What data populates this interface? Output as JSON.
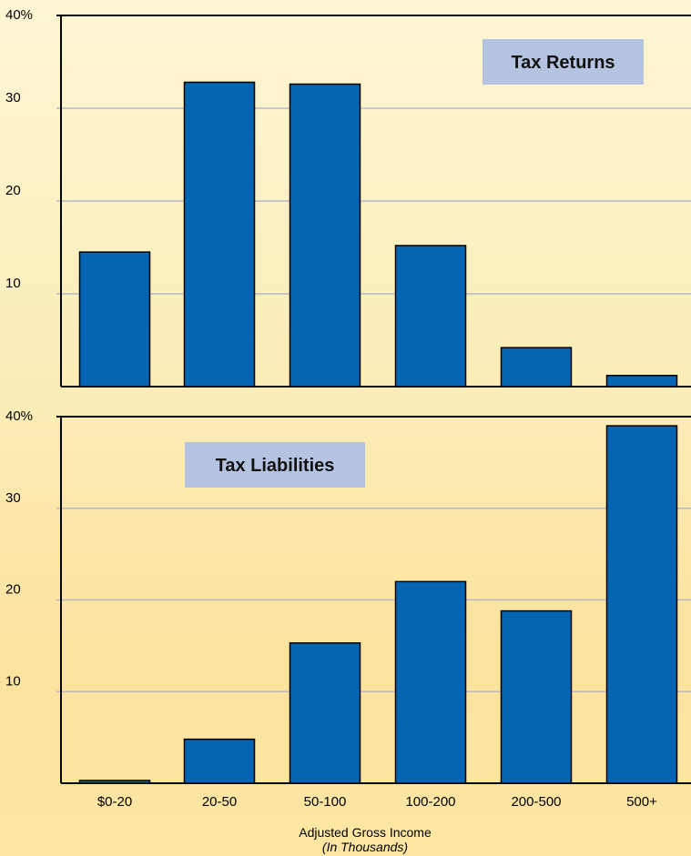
{
  "chart_data": [
    {
      "type": "bar",
      "title": "Tax Returns",
      "categories": [
        "$0-20",
        "20-50",
        "50-100",
        "100-200",
        "200-500",
        "500+"
      ],
      "values": [
        14.5,
        32.8,
        32.6,
        15.2,
        4.2,
        1.2
      ],
      "ylim": [
        0,
        40
      ],
      "yticks": [
        "10",
        "20",
        "30",
        "40%"
      ],
      "grid": true
    },
    {
      "type": "bar",
      "title": "Tax Liabilities",
      "categories": [
        "$0-20",
        "20-50",
        "50-100",
        "100-200",
        "200-500",
        "500+"
      ],
      "values": [
        0.3,
        4.8,
        15.3,
        22.0,
        18.8,
        39.0
      ],
      "ylim": [
        0,
        40
      ],
      "yticks": [
        "10",
        "20",
        "30",
        "40%"
      ],
      "grid": true
    }
  ],
  "xlabel": "Adjusted Gross Income",
  "xlabel_sub": "(In Thousands)",
  "colors": {
    "bar": "#0565b3",
    "grid": "#b7b9c6",
    "title_box": "#b4c4e0"
  }
}
